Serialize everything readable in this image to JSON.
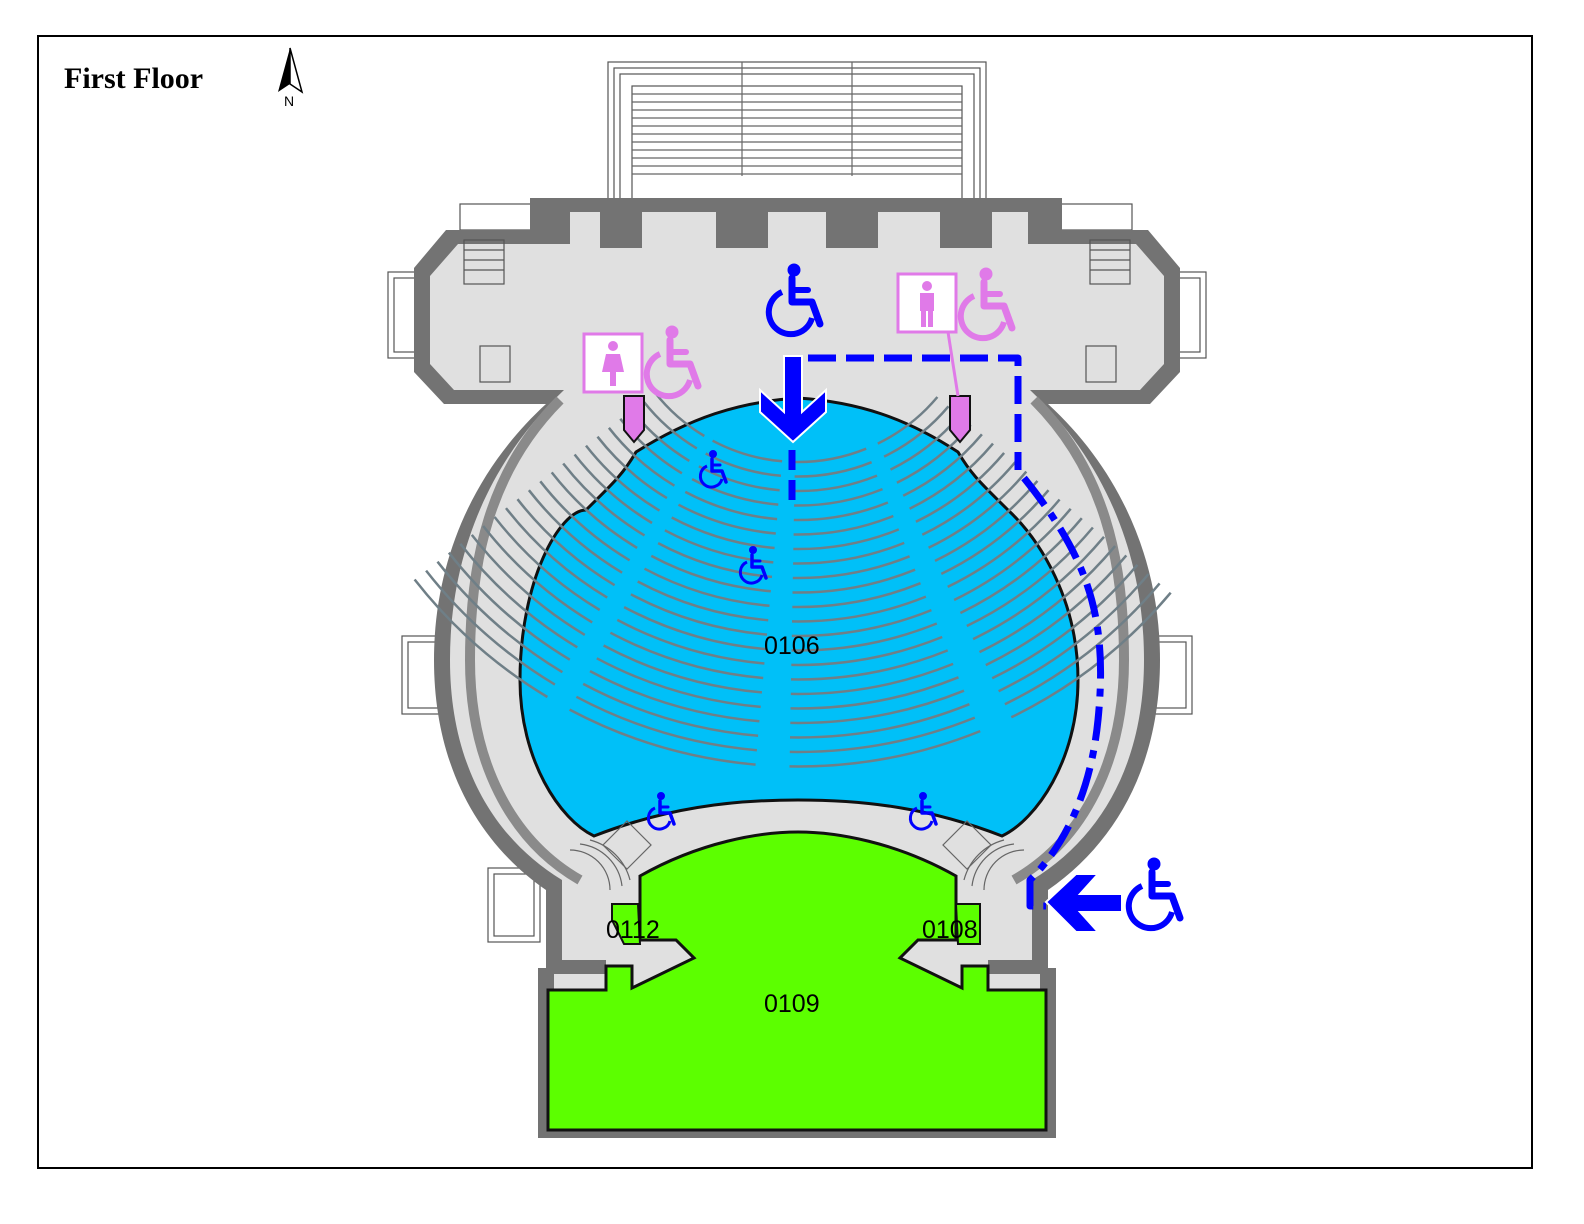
{
  "map": {
    "title": "First Floor",
    "north_label": "N",
    "rooms": [
      {
        "id": "0106",
        "label": "0106",
        "fill": "#00c0f8"
      },
      {
        "id": "0109",
        "label": "0109",
        "fill": "#5cff00"
      },
      {
        "id": "0112",
        "label": "0112"
      },
      {
        "id": "0108",
        "label": "0108"
      }
    ],
    "colors": {
      "walls": "#737373",
      "floor": "#e0e0e0",
      "accessible_route": "#0000ff",
      "restroom": "#e07ae8"
    },
    "icons": [
      "wheelchair-icon",
      "womens-restroom-icon",
      "mens-restroom-icon",
      "north-arrow-icon",
      "entrance-arrow-icon"
    ]
  }
}
